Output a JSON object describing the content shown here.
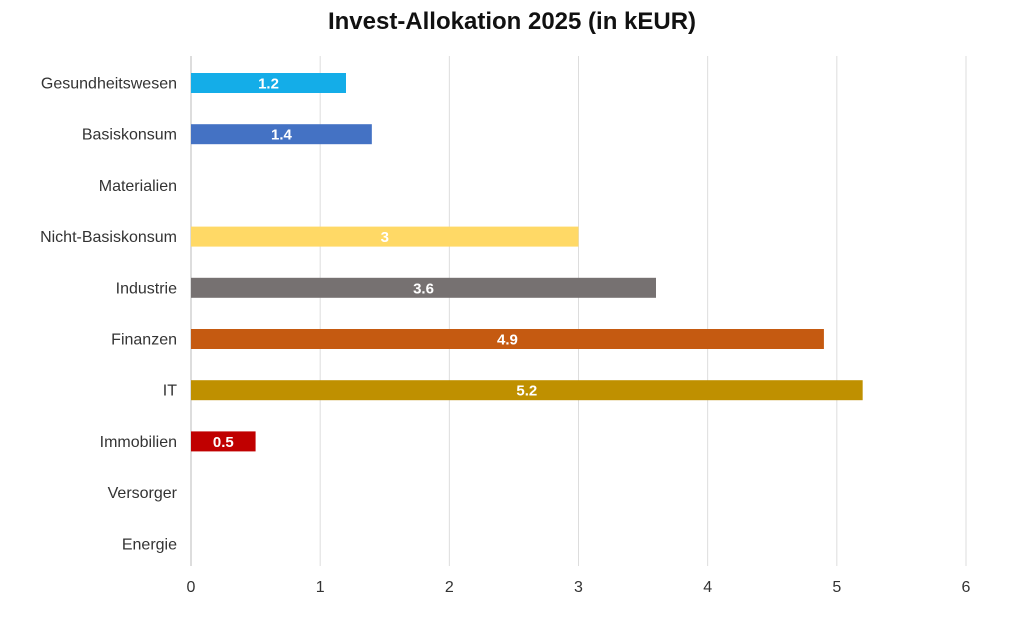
{
  "chart_data": {
    "type": "bar",
    "orientation": "horizontal",
    "title": "Invest-Allokation 2025 (in kEUR)",
    "xlabel": "",
    "ylabel": "",
    "xlim": [
      0,
      6
    ],
    "x_ticks": [
      "0",
      "1",
      "2",
      "3",
      "4",
      "5",
      "6"
    ],
    "grid": true,
    "legend": "none",
    "categories": [
      "Gesundheitswesen",
      "Basiskonsum",
      "Materialien",
      "Nicht-Basiskonsum",
      "Industrie",
      "Finanzen",
      "IT",
      "Immobilien",
      "Versorger",
      "Energie"
    ],
    "values": [
      1.2,
      1.4,
      0,
      3,
      3.6,
      4.9,
      5.2,
      0.5,
      0,
      0
    ],
    "data_labels": [
      "1.2",
      "1.4",
      "",
      "3",
      "3.6",
      "4.9",
      "5.2",
      "0.5",
      "",
      ""
    ],
    "colors": [
      "#14ADE8",
      "#4472C4",
      "#A5A5A5",
      "#FFD966",
      "#767171",
      "#C55A11",
      "#BF9000",
      "#C00000",
      "#70AD47",
      "#264478"
    ]
  }
}
